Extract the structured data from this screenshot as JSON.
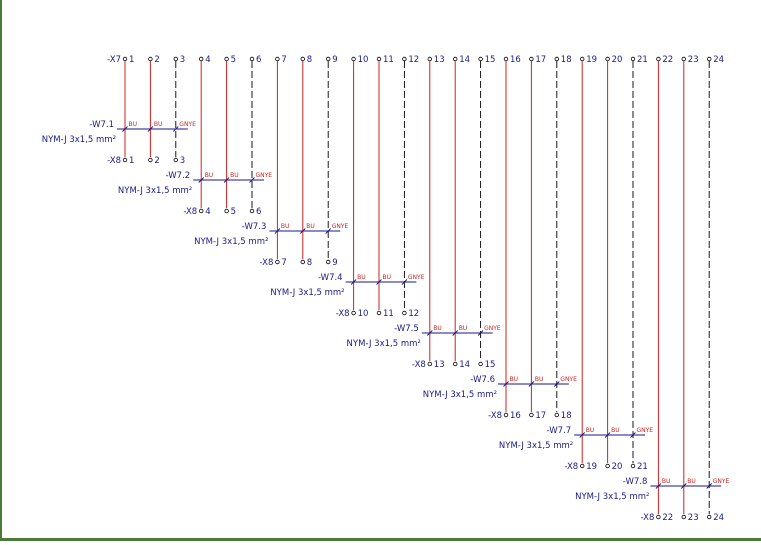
{
  "colors": {
    "wire": "#cc2222",
    "text_blue": "#1a1a88",
    "text_red": "#cc2222",
    "black": "#000000",
    "frame": "#4a7a3a"
  },
  "top_strip": {
    "label": "-X7",
    "terminals": [
      "1",
      "2",
      "3",
      "4",
      "5",
      "6",
      "7",
      "8",
      "9",
      "10",
      "11",
      "12",
      "13",
      "14",
      "15",
      "16",
      "17",
      "18",
      "19",
      "20",
      "21",
      "22",
      "23",
      "24"
    ]
  },
  "cables": [
    {
      "name": "-W7.1",
      "type": "NYM-J 3x1,5 mm²",
      "cores": [
        "BU",
        "BU",
        "GNYE"
      ],
      "strip": "-X8",
      "terminals": [
        "1",
        "2",
        "3"
      ]
    },
    {
      "name": "-W7.2",
      "type": "NYM-J 3x1,5 mm²",
      "cores": [
        "BU",
        "BU",
        "GNYE"
      ],
      "strip": "-X8",
      "terminals": [
        "4",
        "5",
        "6"
      ]
    },
    {
      "name": "-W7.3",
      "type": "NYM-J 3x1,5 mm²",
      "cores": [
        "BU",
        "BU",
        "GNYE"
      ],
      "strip": "-X8",
      "terminals": [
        "7",
        "8",
        "9"
      ]
    },
    {
      "name": "-W7.4",
      "type": "NYM-J 3x1,5 mm²",
      "cores": [
        "BU",
        "BU",
        "GNYE"
      ],
      "strip": "-X8",
      "terminals": [
        "10",
        "11",
        "12"
      ]
    },
    {
      "name": "-W7.5",
      "type": "NYM-J 3x1,5 mm²",
      "cores": [
        "BU",
        "BU",
        "GNYE"
      ],
      "strip": "-X8",
      "terminals": [
        "13",
        "14",
        "15"
      ]
    },
    {
      "name": "-W7.6",
      "type": "NYM-J 3x1,5 mm²",
      "cores": [
        "BU",
        "BU",
        "GNYE"
      ],
      "strip": "-X8",
      "terminals": [
        "16",
        "17",
        "18"
      ]
    },
    {
      "name": "-W7.7",
      "type": "NYM-J 3x1,5 mm²",
      "cores": [
        "BU",
        "BU",
        "GNYE"
      ],
      "strip": "-X8",
      "terminals": [
        "19",
        "20",
        "21"
      ]
    },
    {
      "name": "-W7.8",
      "type": "NYM-J 3x1,5 mm²",
      "cores": [
        "BU",
        "BU",
        "GNYE"
      ],
      "strip": "-X8",
      "terminals": [
        "22",
        "23",
        "24"
      ]
    }
  ]
}
